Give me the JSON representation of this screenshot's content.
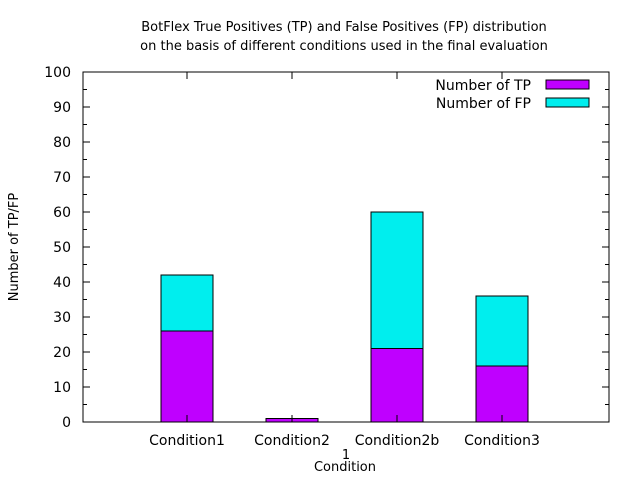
{
  "chart_data": {
    "type": "bar",
    "stacked": true,
    "title_lines": [
      "BotFlex True Positives (TP) and False Positives (FP) distribution",
      "on the basis of different conditions used in the final evaluation"
    ],
    "xlabel": "Condition",
    "x_extra_label": "1",
    "ylabel": "Number of TP/FP",
    "ylim": [
      0,
      100
    ],
    "yticks": [
      0,
      10,
      20,
      30,
      40,
      50,
      60,
      70,
      80,
      90,
      100
    ],
    "categories": [
      "Condition1",
      "Condition2",
      "Condition2b",
      "Condition3"
    ],
    "series": [
      {
        "name": "Number of TP",
        "color": "#bf00ff",
        "values": [
          26,
          1,
          21,
          16
        ]
      },
      {
        "name": "Number of FP",
        "color": "#00eeee",
        "values": [
          16,
          0,
          39,
          20
        ]
      }
    ],
    "legend_position": "top-right",
    "grid": false
  }
}
